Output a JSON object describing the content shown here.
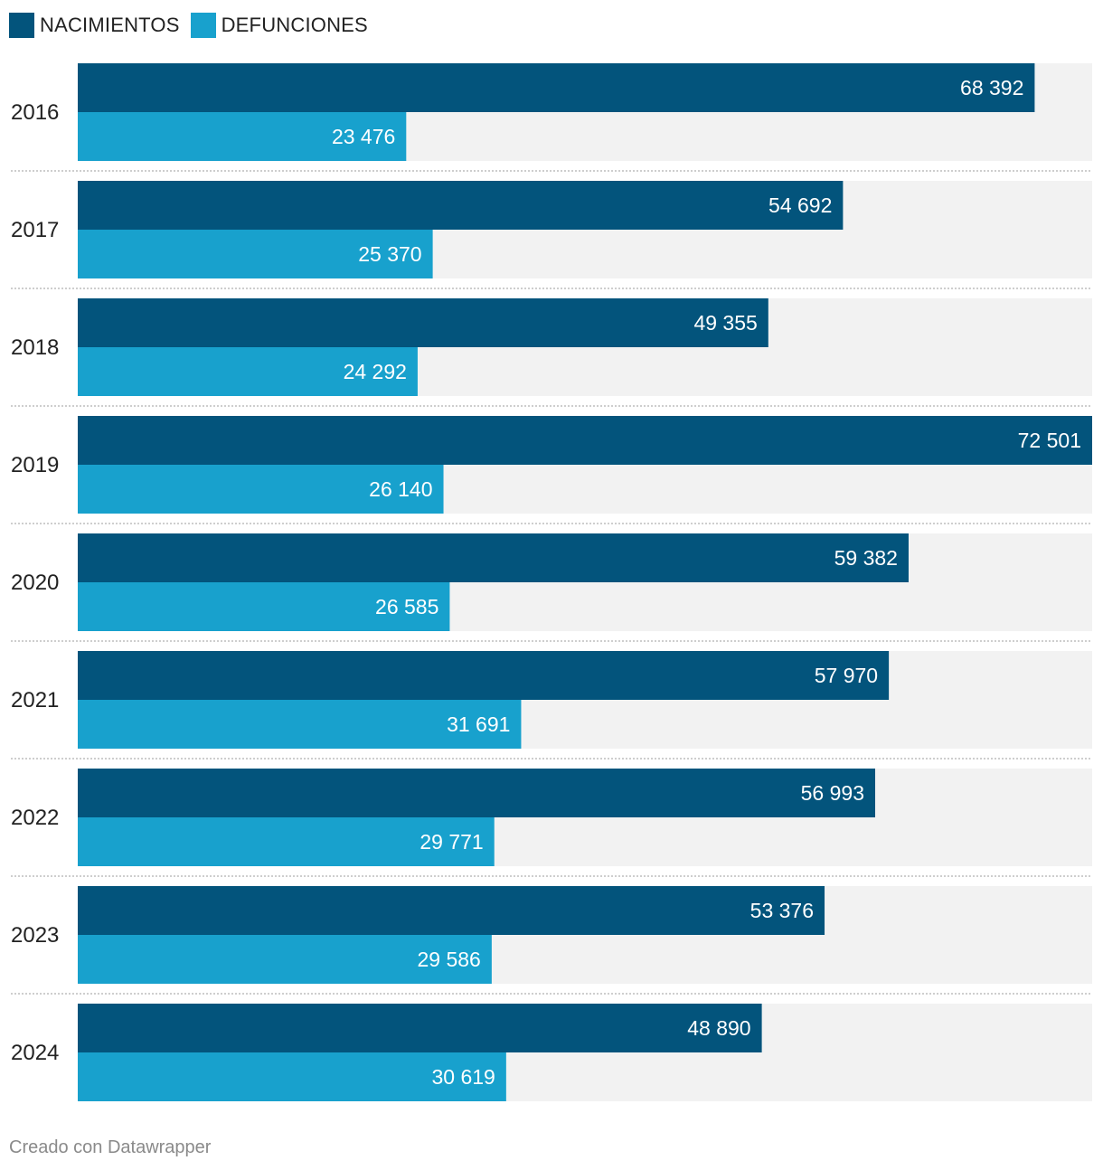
{
  "chart_data": {
    "type": "bar",
    "orientation": "horizontal",
    "categories": [
      "2016",
      "2017",
      "2018",
      "2019",
      "2020",
      "2021",
      "2022",
      "2023",
      "2024"
    ],
    "series": [
      {
        "name": "NACIMIENTOS",
        "color": "#03547c",
        "values": [
          68392,
          54692,
          49355,
          72501,
          59382,
          57970,
          56993,
          53376,
          48890
        ],
        "labels": [
          "68 392",
          "54 692",
          "49 355",
          "72 501",
          "59 382",
          "57 970",
          "56 993",
          "53 376",
          "48 890"
        ]
      },
      {
        "name": "DEFUNCIONES",
        "color": "#18a1cd",
        "values": [
          23476,
          25370,
          24292,
          26140,
          26585,
          31691,
          29771,
          29586,
          30619
        ],
        "labels": [
          "23 476",
          "25 370",
          "24 292",
          "26 140",
          "26 585",
          "31 691",
          "29 771",
          "29 586",
          "30 619"
        ]
      }
    ],
    "xlim": [
      0,
      72501
    ],
    "legend_position": "top-left",
    "background_color": "#f2f2f2"
  },
  "legend": {
    "nacimientos": "NACIMIENTOS",
    "defunciones": "DEFUNCIONES"
  },
  "footer": {
    "credit": "Creado con Datawrapper"
  }
}
